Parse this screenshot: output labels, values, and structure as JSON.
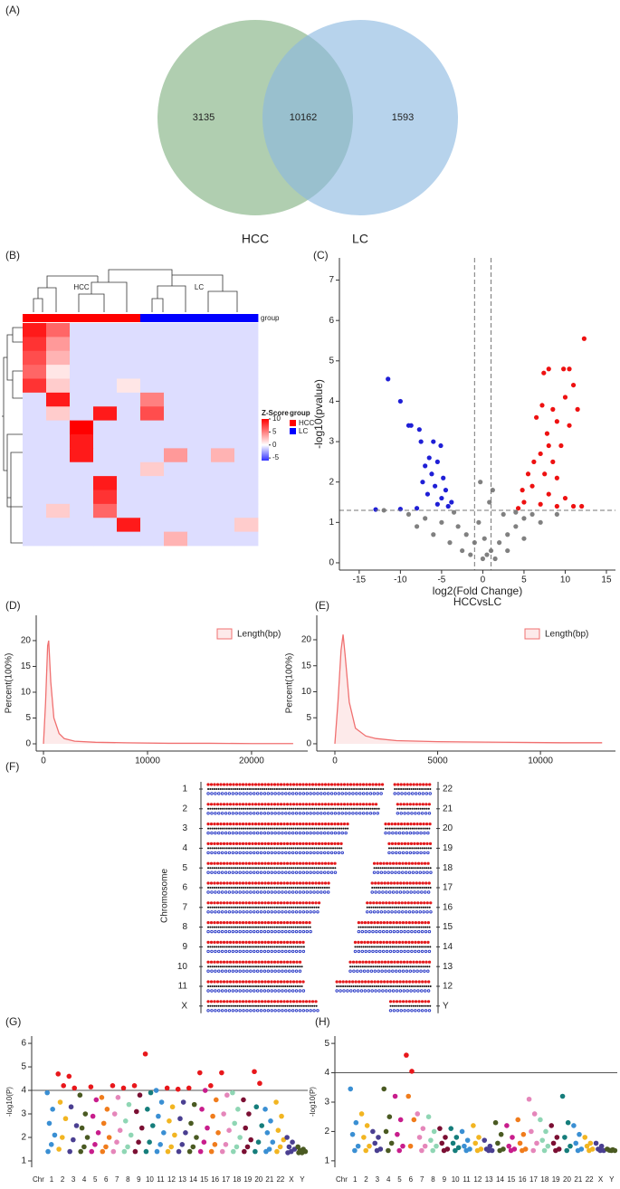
{
  "chart_data": [
    {
      "type": "venn",
      "label": "(A)",
      "sets": [
        {
          "name": "HCC",
          "color": "#7fb07f"
        },
        {
          "name": "LC",
          "color": "#8ab8e0"
        }
      ],
      "values": [
        3135,
        10162,
        1593
      ]
    },
    {
      "type": "heatmap",
      "label": "(B)",
      "groups": [
        {
          "name": "HCC",
          "color": "#ff0000"
        },
        {
          "name": "LC",
          "color": "#0000ff"
        }
      ],
      "column_group": [
        0,
        0,
        0,
        0,
        0,
        1,
        1,
        1,
        1,
        1
      ],
      "group_label": "group",
      "colorbar_title": "Z-Score",
      "zlim": [
        -6,
        10
      ],
      "zticks": [
        10,
        5,
        0,
        -5
      ],
      "colors": {
        "low": "#3030ff",
        "mid": "#ffffff",
        "high": "#ff0000"
      },
      "values": [
        [
          9,
          6,
          -1,
          -1,
          -1,
          -1,
          -1,
          -1,
          -1,
          -1
        ],
        [
          8,
          4,
          -1,
          -1,
          -1,
          -1,
          -1,
          -1,
          -1,
          -1
        ],
        [
          7,
          3,
          -1,
          -1,
          -1,
          -1,
          -1,
          -1,
          -1,
          -1
        ],
        [
          6,
          1,
          -1,
          -1,
          -1,
          -1,
          -1,
          -1,
          -1,
          -1
        ],
        [
          8,
          2,
          -1,
          -1,
          1,
          -1,
          -1,
          -1,
          -1,
          -1
        ],
        [
          -1,
          9,
          -1,
          -1,
          -1,
          5,
          -1,
          -1,
          -1,
          -1
        ],
        [
          -1,
          2,
          -1,
          9,
          -1,
          7,
          -1,
          -1,
          -1,
          -1
        ],
        [
          -1,
          -1,
          10,
          -1,
          -1,
          -1,
          -1,
          -1,
          -1,
          -1
        ],
        [
          -1,
          -1,
          9,
          -1,
          -1,
          -1,
          -1,
          -1,
          -1,
          -1
        ],
        [
          -1,
          -1,
          9,
          -1,
          -1,
          -1,
          4,
          -1,
          3,
          -1
        ],
        [
          -1,
          -1,
          -1,
          -1,
          -1,
          2,
          -1,
          -1,
          -1,
          -1
        ],
        [
          -1,
          -1,
          -1,
          9,
          -1,
          -1,
          -1,
          -1,
          -1,
          -1
        ],
        [
          -1,
          -1,
          -1,
          8,
          -1,
          -1,
          -1,
          -1,
          -1,
          -1
        ],
        [
          -1,
          2,
          -1,
          6,
          -1,
          -1,
          -1,
          -1,
          -1,
          -1
        ],
        [
          -1,
          -1,
          -1,
          -1,
          9,
          -1,
          -1,
          -1,
          -1,
          2
        ],
        [
          -1,
          -1,
          -1,
          -1,
          -1,
          -1,
          3,
          -1,
          -1,
          -1
        ]
      ]
    },
    {
      "type": "scatter",
      "label": "(C)",
      "xlabel": "log2(Fold Change)",
      "subtitle": "HCCvsLC",
      "ylabel": "-log10(pvalue)",
      "xlim": [
        -17.4,
        16.1
      ],
      "ylim": [
        -0.18,
        7.55
      ],
      "xticks": [
        -15,
        -10,
        -5,
        0,
        5,
        10,
        15
      ],
      "yticks": [
        0,
        1,
        2,
        3,
        4,
        5,
        6,
        7
      ],
      "vlines": [
        -1,
        1
      ],
      "hline": 1.3,
      "series": [
        {
          "color": "#808080",
          "x": [
            -12,
            -9,
            -7,
            -5,
            -3,
            -2,
            -1,
            0,
            0.5,
            1,
            2,
            3,
            4,
            5,
            6,
            -4,
            -2.5,
            -1.5,
            1.5,
            3,
            5,
            7,
            9,
            -6,
            -0.5,
            0.8,
            -0.3,
            1.2,
            4,
            -3.5,
            2.5,
            -8,
            0.2
          ],
          "values": [
            1.3,
            1.2,
            1.1,
            1.0,
            0.9,
            0.7,
            0.5,
            0.1,
            0.2,
            0.3,
            0.5,
            0.7,
            0.9,
            1.1,
            1.2,
            0.5,
            0.3,
            0.2,
            0.1,
            0.3,
            0.6,
            1.0,
            1.2,
            0.7,
            1.0,
            1.5,
            2.0,
            1.8,
            1.25,
            1.25,
            1.2,
            0.9,
            0.6
          ]
        },
        {
          "color": "#1f1fd6",
          "x": [
            -11.5,
            -10,
            -9,
            -8.7,
            -7.7,
            -7.5,
            -6,
            -5.1,
            -6.5,
            -7,
            -5.5,
            -6.2,
            -4.8,
            -7.3,
            -5.8,
            -4.5,
            -6.7,
            -5,
            -3.8,
            -4.2,
            -5.5,
            -8,
            -10,
            -13
          ],
          "values": [
            4.55,
            4.0,
            3.4,
            3.4,
            3.3,
            3.0,
            3.0,
            2.9,
            2.6,
            2.4,
            2.5,
            2.2,
            2.1,
            2.0,
            1.9,
            1.8,
            1.7,
            1.6,
            1.5,
            1.4,
            1.45,
            1.35,
            1.33,
            1.32
          ]
        },
        {
          "color": "#ee1111",
          "x": [
            12.3,
            10.5,
            9.8,
            8,
            7.4,
            11,
            10,
            8.5,
            7.2,
            9,
            7.8,
            6.5,
            10.5,
            11.5,
            8,
            7,
            9.5,
            6.2,
            8.5,
            5.5,
            7.5,
            9,
            6,
            4.8,
            8,
            10,
            5,
            7,
            9,
            11,
            12,
            4.3
          ],
          "values": [
            5.55,
            4.8,
            4.8,
            4.8,
            4.7,
            4.4,
            4.1,
            3.8,
            3.9,
            3.5,
            3.2,
            3.6,
            3.4,
            3.8,
            2.9,
            2.7,
            2.9,
            2.5,
            2.5,
            2.2,
            2.2,
            2.1,
            1.9,
            1.8,
            1.7,
            1.6,
            1.5,
            1.45,
            1.4,
            1.4,
            1.4,
            1.35
          ]
        }
      ]
    },
    {
      "type": "area",
      "label": "(D)",
      "ylabel": "Percent(100%)",
      "xlim": [
        -700,
        25400
      ],
      "ylim": [
        -1.4,
        24.9
      ],
      "xticks": [
        0,
        10000,
        20000
      ],
      "yticks": [
        0,
        5,
        10,
        15,
        20
      ],
      "series": [
        {
          "name": "Length(bp)",
          "color": "#f07070",
          "x": [
            0,
            200,
            400,
            500,
            700,
            1000,
            1500,
            2000,
            3000,
            5000,
            8000,
            12000,
            16000,
            20000,
            24000
          ],
          "values": [
            0,
            8,
            19,
            20,
            12,
            5,
            2,
            1,
            0.5,
            0.3,
            0.2,
            0.1,
            0.1,
            0.05,
            0.05
          ]
        }
      ]
    },
    {
      "type": "area",
      "label": "(E)",
      "ylabel": "Percent(100%)",
      "xlim": [
        -880,
        13650
      ],
      "ylim": [
        -1.4,
        24.7
      ],
      "xticks": [
        0,
        5000,
        10000
      ],
      "yticks": [
        0,
        5,
        10,
        15,
        20
      ],
      "series": [
        {
          "name": "Length(bp)",
          "color": "#f07070",
          "x": [
            0,
            150,
            300,
            400,
            500,
            700,
            1000,
            1500,
            2000,
            3000,
            5000,
            8000,
            11000,
            13000
          ],
          "values": [
            0,
            8,
            18,
            21,
            17,
            8,
            3,
            1.5,
            1,
            0.6,
            0.4,
            0.3,
            0.2,
            0.2
          ]
        }
      ]
    },
    {
      "type": "chromosome",
      "label": "(F)",
      "ylabel": "Chromosome",
      "left": [
        {
          "name": "1",
          "length": 249
        },
        {
          "name": "2",
          "length": 242
        },
        {
          "name": "3",
          "length": 198
        },
        {
          "name": "4",
          "length": 190
        },
        {
          "name": "5",
          "length": 181
        },
        {
          "name": "6",
          "length": 171
        },
        {
          "name": "7",
          "length": 159
        },
        {
          "name": "8",
          "length": 145
        },
        {
          "name": "9",
          "length": 138
        },
        {
          "name": "10",
          "length": 134
        },
        {
          "name": "11",
          "length": 135
        },
        {
          "name": "X",
          "length": 156
        }
      ],
      "right": [
        {
          "name": "22",
          "length": 51
        },
        {
          "name": "21",
          "length": 47
        },
        {
          "name": "20",
          "length": 64
        },
        {
          "name": "19",
          "length": 59
        },
        {
          "name": "18",
          "length": 80
        },
        {
          "name": "17",
          "length": 83
        },
        {
          "name": "16",
          "length": 90
        },
        {
          "name": "15",
          "length": 102
        },
        {
          "name": "14",
          "length": 107
        },
        {
          "name": "13",
          "length": 114
        },
        {
          "name": "12",
          "length": 133
        },
        {
          "name": "Y",
          "length": 57
        }
      ]
    },
    {
      "type": "manhattan",
      "label": "(G)",
      "xlabel": "Chr",
      "ylabel": "-log10(P)",
      "ylim": [
        0.73,
        6.31
      ],
      "yticks": [
        1,
        2,
        3,
        4,
        5,
        6
      ],
      "threshold": 4,
      "highlight_color": "#e8171b",
      "colors": [
        "#3a8fd3",
        "#f2b521",
        "#4a3f91",
        "#4a5a22",
        "#c81d8c",
        "#f07c1c",
        "#e586ba",
        "#8fd6b4",
        "#7b0f33",
        "#157d7b"
      ],
      "categories": [
        "1",
        "2",
        "3",
        "4",
        "5",
        "6",
        "7",
        "8",
        "9",
        "10",
        "11",
        "12",
        "13",
        "14",
        "15",
        "16",
        "17",
        "18",
        "19",
        "20",
        "21",
        "22",
        "X",
        "Y"
      ],
      "values": [
        [
          3.9,
          3.2,
          2.6,
          2.1,
          1.7,
          1.4
        ],
        [
          4.7,
          4.2,
          3.5,
          2.8,
          2.0,
          1.5
        ],
        [
          4.6,
          4.1,
          3.3,
          2.5,
          1.9,
          1.4
        ],
        [
          3.8,
          3.0,
          2.4,
          2.0,
          1.6,
          1.4
        ],
        [
          4.15,
          3.6,
          2.9,
          2.2,
          1.7,
          1.4
        ],
        [
          3.7,
          3.2,
          2.6,
          2.0,
          1.6,
          1.4
        ],
        [
          4.2,
          3.7,
          3.0,
          2.3,
          1.8,
          1.4
        ],
        [
          4.1,
          3.4,
          2.7,
          2.1,
          1.6,
          1.4
        ],
        [
          4.2,
          3.8,
          3.1,
          2.4,
          1.8,
          1.4
        ],
        [
          5.55,
          3.9,
          3.2,
          2.5,
          1.8,
          1.4
        ],
        [
          4.0,
          3.5,
          2.9,
          2.2,
          1.7,
          1.4
        ],
        [
          4.1,
          3.3,
          2.7,
          2.1,
          1.6,
          1.4
        ],
        [
          4.05,
          3.5,
          2.8,
          2.2,
          1.7,
          1.4
        ],
        [
          4.1,
          3.4,
          2.6,
          2.0,
          1.6,
          1.4
        ],
        [
          4.75,
          4.0,
          3.2,
          2.4,
          1.8,
          1.4
        ],
        [
          4.2,
          3.6,
          2.9,
          2.2,
          1.7,
          1.4
        ],
        [
          4.75,
          3.8,
          3.0,
          2.3,
          1.7,
          1.4
        ],
        [
          3.9,
          3.2,
          2.6,
          2.0,
          1.6,
          1.4
        ],
        [
          3.6,
          3.0,
          2.4,
          1.9,
          1.6,
          1.4
        ],
        [
          4.8,
          4.3,
          3.3,
          2.5,
          1.8,
          1.4
        ],
        [
          3.2,
          2.7,
          2.2,
          1.8,
          1.5,
          1.4
        ],
        [
          3.5,
          2.9,
          2.3,
          1.9,
          1.6,
          1.4
        ],
        [
          2.0,
          1.8,
          1.6,
          1.5,
          1.4,
          1.35
        ],
        [
          1.6,
          1.5,
          1.45,
          1.4,
          1.35,
          1.35
        ]
      ]
    },
    {
      "type": "manhattan",
      "label": "(H)",
      "xlabel": "Chr",
      "ylabel": "-log10(P)",
      "ylim": [
        0.78,
        5.25
      ],
      "yticks": [
        1,
        2,
        3,
        4,
        5
      ],
      "threshold": 4,
      "highlight_color": "#e8171b",
      "colors": [
        "#3a8fd3",
        "#f2b521",
        "#4a3f91",
        "#4a5a22",
        "#c81d8c",
        "#f07c1c",
        "#e586ba",
        "#8fd6b4",
        "#7b0f33",
        "#157d7b"
      ],
      "categories": [
        "1",
        "2",
        "3",
        "4",
        "5",
        "6",
        "7",
        "8",
        "9",
        "10",
        "11",
        "12",
        "13",
        "14",
        "15",
        "16",
        "17",
        "18",
        "19",
        "20",
        "21",
        "22",
        "X",
        "Y"
      ],
      "values": [
        [
          3.45,
          2.3,
          1.9,
          1.5,
          1.35
        ],
        [
          2.6,
          2.2,
          1.8,
          1.5,
          1.35
        ],
        [
          2.0,
          1.8,
          1.6,
          1.4,
          1.35
        ],
        [
          3.45,
          2.5,
          2.0,
          1.6,
          1.35
        ],
        [
          3.2,
          2.4,
          1.9,
          1.5,
          1.35
        ],
        [
          4.6,
          4.05,
          3.2,
          2.4,
          1.5
        ],
        [
          2.6,
          2.1,
          1.8,
          1.5,
          1.35
        ],
        [
          2.5,
          2.0,
          1.7,
          1.5,
          1.35
        ],
        [
          2.1,
          1.8,
          1.6,
          1.4,
          1.35
        ],
        [
          2.1,
          1.8,
          1.6,
          1.45,
          1.35
        ],
        [
          2.0,
          1.7,
          1.5,
          1.4,
          1.35
        ],
        [
          2.2,
          1.8,
          1.6,
          1.4,
          1.35
        ],
        [
          1.7,
          1.5,
          1.4,
          1.35,
          1.35
        ],
        [
          2.3,
          1.9,
          1.6,
          1.4,
          1.35
        ],
        [
          2.2,
          1.8,
          1.5,
          1.4,
          1.35
        ],
        [
          2.4,
          1.9,
          1.6,
          1.4,
          1.35
        ],
        [
          3.1,
          2.6,
          2.0,
          1.6,
          1.35
        ],
        [
          2.4,
          2.0,
          1.7,
          1.5,
          1.35
        ],
        [
          2.2,
          1.8,
          1.6,
          1.4,
          1.35
        ],
        [
          3.2,
          2.3,
          1.8,
          1.5,
          1.35
        ],
        [
          2.2,
          1.9,
          1.6,
          1.4,
          1.35
        ],
        [
          1.8,
          1.6,
          1.5,
          1.4,
          1.35
        ],
        [
          1.6,
          1.5,
          1.4,
          1.35,
          1.35
        ],
        [
          1.4,
          1.38,
          1.36,
          1.35,
          1.35
        ]
      ]
    }
  ]
}
